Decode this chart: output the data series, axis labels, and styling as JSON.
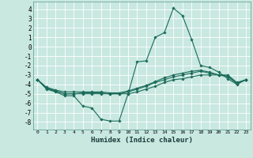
{
  "title": "",
  "xlabel": "Humidex (Indice chaleur)",
  "xlim": [
    -0.5,
    23.5
  ],
  "ylim": [
    -8.8,
    4.8
  ],
  "yticks": [
    4,
    3,
    2,
    1,
    0,
    -1,
    -2,
    -3,
    -4,
    -5,
    -6,
    -7,
    -8
  ],
  "xticks": [
    0,
    1,
    2,
    3,
    4,
    5,
    6,
    7,
    8,
    9,
    10,
    11,
    12,
    13,
    14,
    15,
    16,
    17,
    18,
    19,
    20,
    21,
    22,
    23
  ],
  "bg_color": "#c8e8e0",
  "grid_color": "#ffffff",
  "line_color": "#1a6b5a",
  "lines": [
    {
      "x": [
        0,
        1,
        2,
        3,
        4,
        5,
        6,
        7,
        8,
        9,
        10,
        11,
        12,
        13,
        14,
        15,
        16,
        17,
        18,
        19,
        20,
        21,
        22,
        23
      ],
      "y": [
        -3.5,
        -4.5,
        -4.8,
        -5.2,
        -5.2,
        -6.3,
        -6.5,
        -7.7,
        -7.9,
        -7.9,
        -5.0,
        -1.6,
        -1.5,
        1.0,
        1.5,
        4.1,
        3.3,
        0.8,
        -2.0,
        -2.2,
        -2.7,
        -3.4,
        -4.0,
        -3.5
      ]
    },
    {
      "x": [
        0,
        1,
        2,
        3,
        4,
        5,
        6,
        7,
        8,
        9,
        10,
        11,
        12,
        13,
        14,
        15,
        16,
        17,
        18,
        19,
        20,
        21,
        22,
        23
      ],
      "y": [
        -3.5,
        -4.3,
        -4.6,
        -4.8,
        -4.8,
        -4.8,
        -4.8,
        -4.8,
        -4.9,
        -4.9,
        -4.7,
        -4.4,
        -4.1,
        -3.7,
        -3.3,
        -3.0,
        -2.8,
        -2.6,
        -2.5,
        -2.7,
        -3.0,
        -3.2,
        -3.9,
        -3.5
      ]
    },
    {
      "x": [
        0,
        1,
        2,
        3,
        4,
        5,
        6,
        7,
        8,
        9,
        10,
        11,
        12,
        13,
        14,
        15,
        16,
        17,
        18,
        19,
        20,
        21,
        22,
        23
      ],
      "y": [
        -3.5,
        -4.4,
        -4.7,
        -5.0,
        -5.0,
        -4.9,
        -4.9,
        -4.9,
        -5.0,
        -5.0,
        -4.8,
        -4.5,
        -4.2,
        -3.8,
        -3.5,
        -3.2,
        -3.0,
        -2.8,
        -2.6,
        -2.8,
        -3.0,
        -3.1,
        -3.9,
        -3.5
      ]
    },
    {
      "x": [
        0,
        1,
        2,
        3,
        4,
        5,
        6,
        7,
        8,
        9,
        10,
        11,
        12,
        13,
        14,
        15,
        16,
        17,
        18,
        19,
        20,
        21,
        22,
        23
      ],
      "y": [
        -3.5,
        -4.4,
        -4.7,
        -5.0,
        -5.0,
        -5.0,
        -5.0,
        -5.0,
        -5.0,
        -5.0,
        -5.0,
        -4.8,
        -4.5,
        -4.2,
        -3.8,
        -3.5,
        -3.4,
        -3.2,
        -3.0,
        -3.0,
        -3.0,
        -3.0,
        -3.8,
        -3.5
      ]
    }
  ]
}
